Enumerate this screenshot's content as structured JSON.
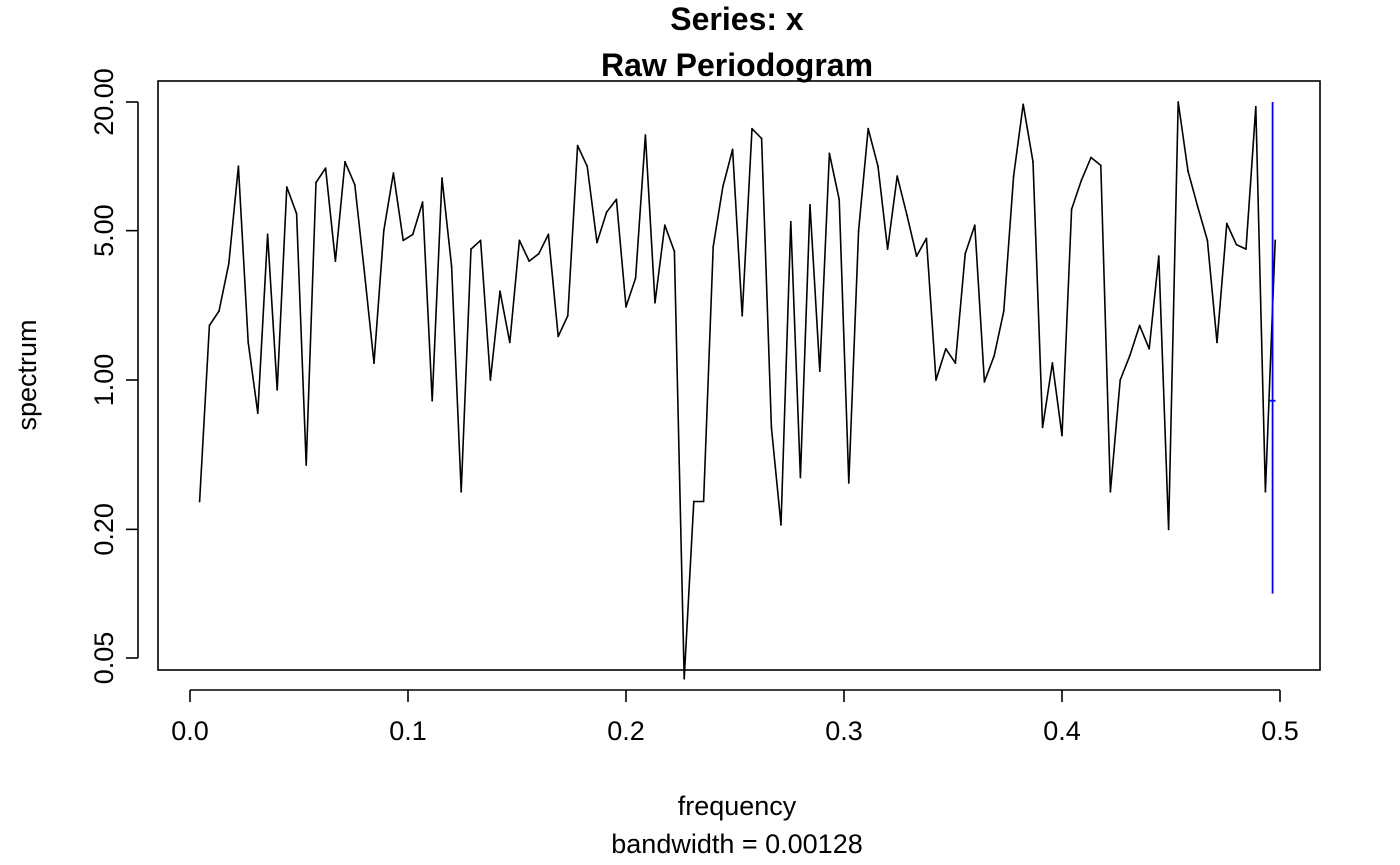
{
  "chart_data": {
    "type": "line",
    "title": "Series: x",
    "subtitle": "Raw Periodogram",
    "xlabel": "frequency",
    "sublabel": "bandwidth = 0.00128",
    "ylabel": "spectrum",
    "log_y": true,
    "xlim": [
      -0.015,
      0.52
    ],
    "ylim": [
      0.045,
      22
    ],
    "x_ticks": [
      0.0,
      0.1,
      0.2,
      0.3,
      0.4,
      0.5
    ],
    "x_tick_labels": [
      "0.0",
      "0.1",
      "0.2",
      "0.3",
      "0.4",
      "0.5"
    ],
    "y_ticks": [
      0.05,
      0.2,
      1.0,
      5.0,
      20.0
    ],
    "y_tick_labels": [
      "0.05",
      "0.20",
      "1.00",
      "5.00",
      "20.00"
    ],
    "grid": false,
    "line_color": "#000000",
    "ci_color": "#0000ff",
    "ci_bar": {
      "x": 0.4966,
      "lower": 0.1,
      "upper": 20.0,
      "center": 0.8
    },
    "series": [
      {
        "x": [
          0.0044,
          0.0089,
          0.0133,
          0.0178,
          0.0222,
          0.0267,
          0.0311,
          0.0356,
          0.04,
          0.0444,
          0.0489,
          0.0533,
          0.0578,
          0.0622,
          0.0667,
          0.0711,
          0.0756,
          0.08,
          0.0844,
          0.0889,
          0.0933,
          0.0978,
          0.1022,
          0.1067,
          0.1111,
          0.1156,
          0.12,
          0.1244,
          0.1289,
          0.1333,
          0.1378,
          0.1422,
          0.1467,
          0.1511,
          0.1556,
          0.16,
          0.1644,
          0.1689,
          0.1733,
          0.1778,
          0.1822,
          0.1867,
          0.1911,
          0.1956,
          0.2,
          0.2044,
          0.2089,
          0.2133,
          0.2178,
          0.2222,
          0.2267,
          0.2311,
          0.2356,
          0.24,
          0.2444,
          0.2489,
          0.2533,
          0.2578,
          0.2622,
          0.2667,
          0.2711,
          0.2756,
          0.28,
          0.2844,
          0.2889,
          0.2933,
          0.2978,
          0.3022,
          0.3067,
          0.3111,
          0.3156,
          0.32,
          0.3244,
          0.3289,
          0.3333,
          0.3378,
          0.3422,
          0.3467,
          0.3511,
          0.3556,
          0.36,
          0.3644,
          0.3689,
          0.3733,
          0.3778,
          0.3822,
          0.3867,
          0.3911,
          0.3956,
          0.4,
          0.4044,
          0.4089,
          0.4133,
          0.4178,
          0.4222,
          0.4267,
          0.4311,
          0.4356,
          0.44,
          0.4444,
          0.4489,
          0.4533,
          0.4578,
          0.4622,
          0.4667,
          0.4711,
          0.4756,
          0.48,
          0.4844,
          0.4889,
          0.4933,
          0.4978
        ],
        "values": [
          0.27,
          1.8,
          2.1,
          3.5,
          10.0,
          1.5,
          0.7,
          4.8,
          0.9,
          8.0,
          6.0,
          0.4,
          8.4,
          9.8,
          3.6,
          10.5,
          8.2,
          3.2,
          1.2,
          5.0,
          9.3,
          4.5,
          4.8,
          6.8,
          0.8,
          8.8,
          3.4,
          0.3,
          4.1,
          4.5,
          1.0,
          2.6,
          1.5,
          4.5,
          3.6,
          3.9,
          4.8,
          1.6,
          2.0,
          12.5,
          10.0,
          4.4,
          6.1,
          7.0,
          2.2,
          3.0,
          14.0,
          2.3,
          5.3,
          4.0,
          0.04,
          0.27,
          0.27,
          4.2,
          8.0,
          12.0,
          2.0,
          15.0,
          13.5,
          0.6,
          0.21,
          5.5,
          0.35,
          6.6,
          1.1,
          11.5,
          7.0,
          0.33,
          5.0,
          15.0,
          10.0,
          4.1,
          9.0,
          5.9,
          3.8,
          4.6,
          1.0,
          1.4,
          1.2,
          3.9,
          5.3,
          0.98,
          1.3,
          2.1,
          9.0,
          19.5,
          10.5,
          0.6,
          1.2,
          0.55,
          6.3,
          8.6,
          11.0,
          10.1,
          0.3,
          1.0,
          1.3,
          1.8,
          1.4,
          3.8,
          0.2,
          20.0,
          9.5,
          6.5,
          4.5,
          1.5,
          5.4,
          4.3,
          4.1,
          19.0,
          0.3,
          4.5
        ]
      }
    ]
  }
}
